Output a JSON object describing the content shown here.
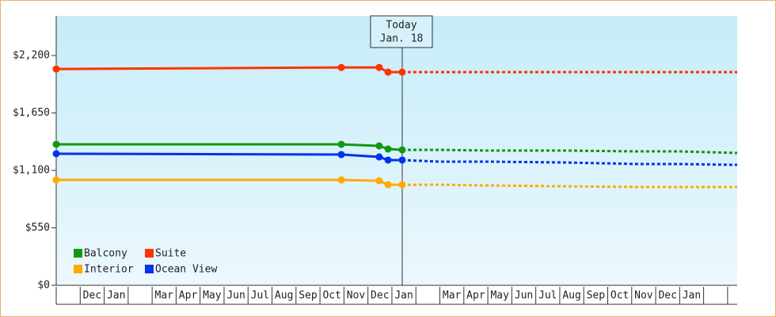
{
  "chart_data": {
    "type": "line",
    "x": [
      0,
      11.89,
      13.47,
      13.84,
      14.43,
      16.0,
      18.0,
      21.2,
      24.3,
      26.0,
      28.4
    ],
    "xlim": [
      0,
      28.4
    ],
    "categories": [
      null,
      "Dec",
      "Jan",
      null,
      "Mar",
      "Apr",
      "May",
      "Jun",
      "Jul",
      "Aug",
      "Sep",
      "Oct",
      "Nov",
      "Dec",
      "Jan",
      null,
      "Mar",
      "Apr",
      "May",
      "Jun",
      "Jul",
      "Aug",
      "Sep",
      "Oct",
      "Nov",
      "Dec",
      "Jan",
      null,
      null
    ],
    "ylim": [
      0,
      2580
    ],
    "yticks": [
      {
        "value": 0,
        "label": "$0"
      },
      {
        "value": 550,
        "label": "$550"
      },
      {
        "value": 1100,
        "label": "$1,100"
      },
      {
        "value": 1650,
        "label": "$1,650"
      },
      {
        "value": 2200,
        "label": "$2,200"
      }
    ],
    "series": [
      {
        "name": "Balcony",
        "color": "#119911",
        "values": [
          1350,
          1350,
          1335,
          1305,
          1297,
          1297,
          1290,
          1290,
          1282,
          1282,
          1267
        ]
      },
      {
        "name": "Suite",
        "color": "#ff3300",
        "values": [
          2071,
          2086,
          2086,
          2041,
          2041,
          2041,
          2041,
          2041,
          2041,
          2041,
          2041
        ]
      },
      {
        "name": "Interior",
        "color": "#ffaa00",
        "values": [
          1009,
          1009,
          1001,
          963,
          963,
          963,
          956,
          948,
          941,
          941,
          941
        ]
      },
      {
        "name": "Ocean View",
        "color": "#0033ee",
        "values": [
          1260,
          1252,
          1229,
          1199,
          1199,
          1184,
          1184,
          1176,
          1161,
          1161,
          1153
        ]
      }
    ],
    "today": {
      "x": 14.43,
      "lines": [
        "Today",
        "Jan. 18"
      ]
    },
    "legend": "lower-left"
  }
}
